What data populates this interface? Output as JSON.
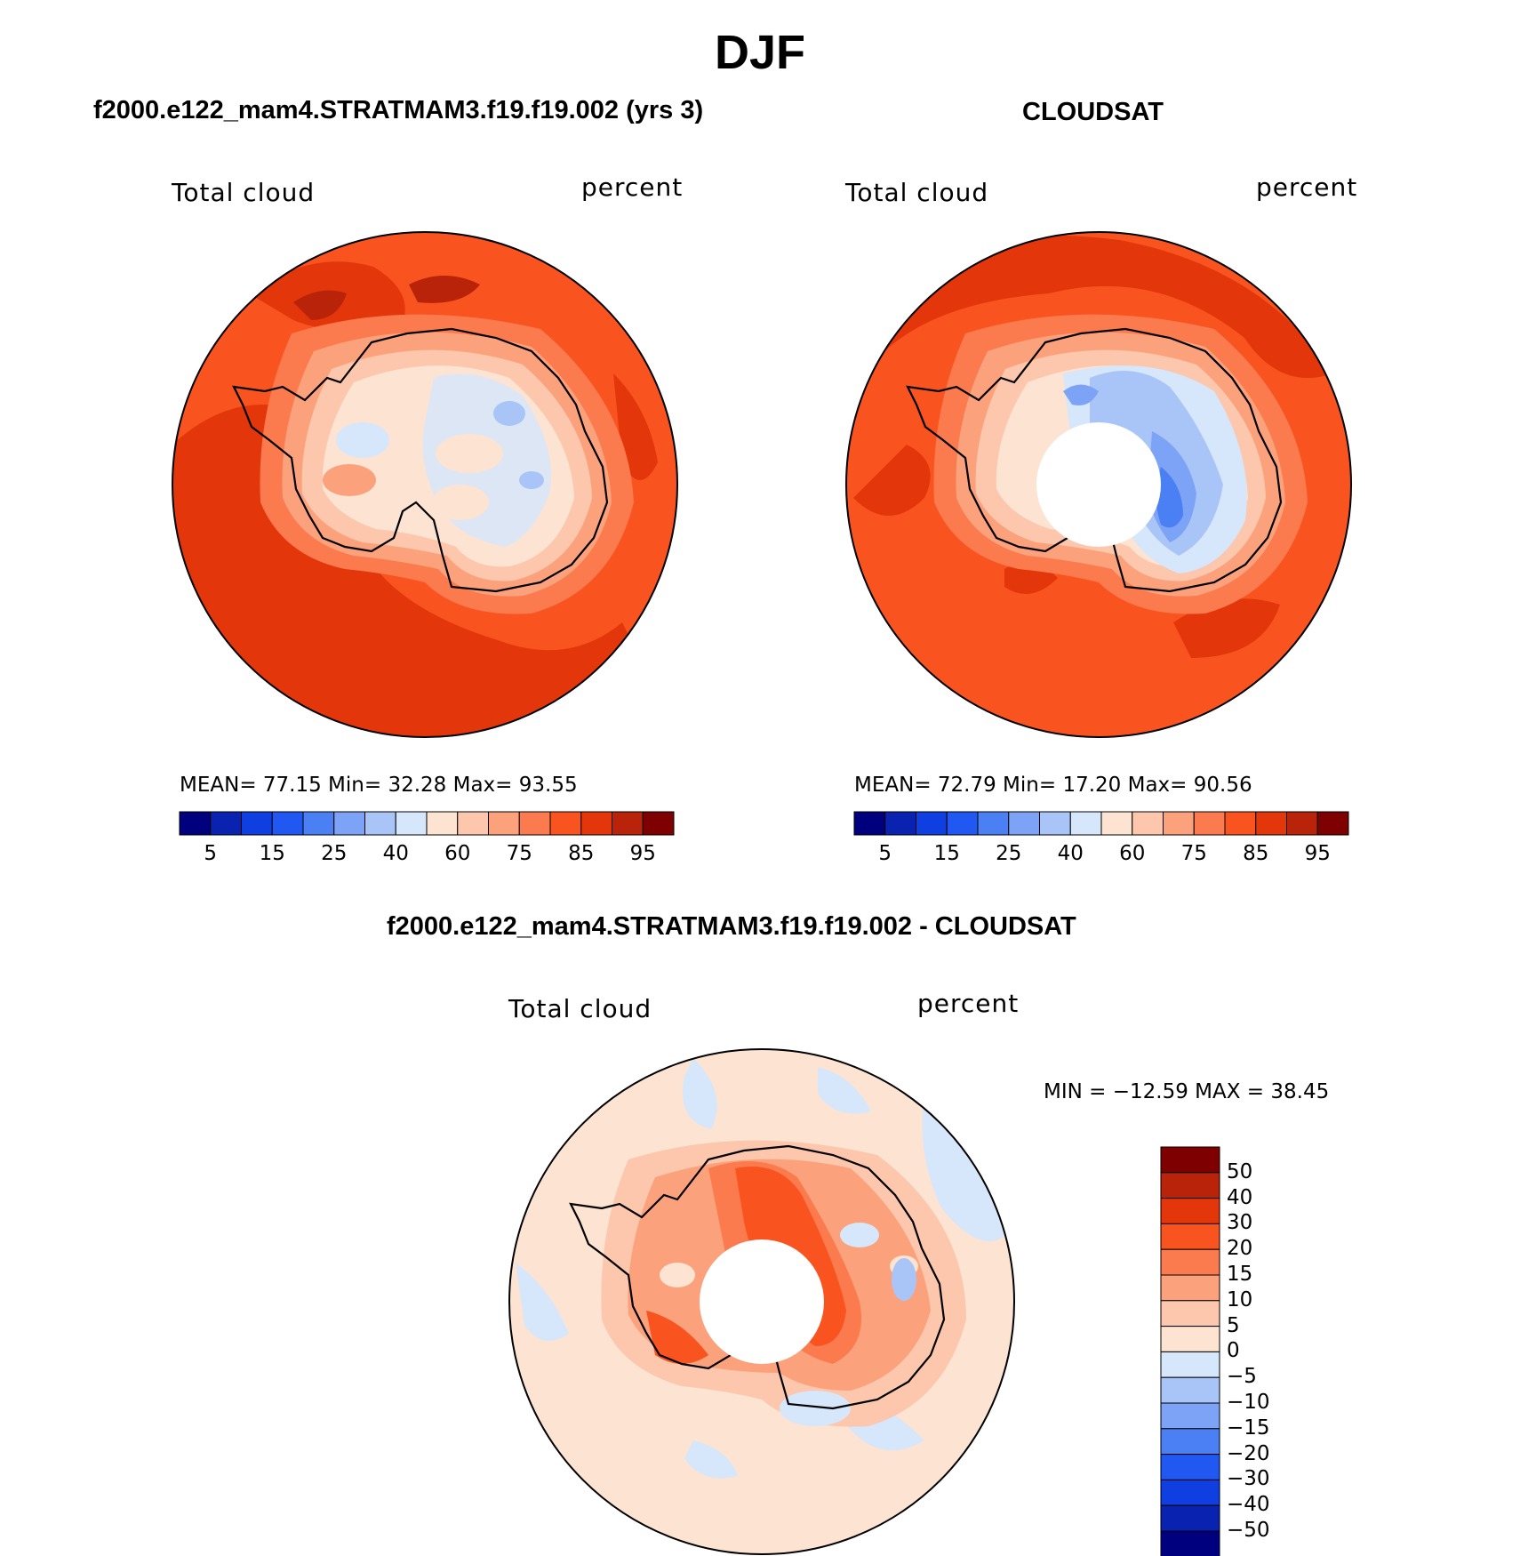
{
  "title": "DJF",
  "colors": {
    "absolute_scale": [
      "#00007f",
      "#0a22b0",
      "#0f3fe0",
      "#2258f2",
      "#4b7ff4",
      "#7da3f6",
      "#a9c5f8",
      "#d6e6fb",
      "#fde3d2",
      "#fcc7ac",
      "#fba27d",
      "#fb7b4e",
      "#f9531f",
      "#e3360a",
      "#b9230a",
      "#7f0000"
    ],
    "diff_scale": [
      "#00007f",
      "#0a22b0",
      "#0f3fe0",
      "#2258f2",
      "#4b7ff4",
      "#7da3f6",
      "#a9c5f8",
      "#d6e6fb",
      "#fde3d2",
      "#fcc7ac",
      "#fba27d",
      "#fb7b4e",
      "#f9531f",
      "#e3360a",
      "#b9230a",
      "#7f0000"
    ]
  },
  "chart_data": [
    {
      "type": "heatmap",
      "projection": "south-polar-stereographic",
      "panel_title": "f2000.e122_mam4.STRATMAM3.f19.f19.002 (yrs 3)",
      "left_label": "Total cloud",
      "right_label": "percent",
      "stats": {
        "mean": "77.15",
        "min": "32.28",
        "max": "93.55"
      },
      "stats_text": "MEAN=   77.15   Min=   32.28   Max=   93.55",
      "colorbar_labels": [
        "5",
        "15",
        "25",
        "40",
        "60",
        "75",
        "85",
        "95"
      ],
      "description": "Model total cloud fraction, mostly 80-90% over Southern Ocean, 40-60% over Antarctic interior"
    },
    {
      "type": "heatmap",
      "projection": "south-polar-stereographic",
      "panel_title": "CLOUDSAT",
      "left_label": "Total cloud",
      "right_label": "percent",
      "stats": {
        "mean": "72.79",
        "min": "17.20",
        "max": "90.56"
      },
      "stats_text": "MEAN=   72.79   Min=   17.20   Max=   90.56",
      "colorbar_labels": [
        "5",
        "15",
        "25",
        "40",
        "60",
        "75",
        "85",
        "95"
      ],
      "description": "CloudSat observed total cloud fraction, 80-90% over ocean, 15-40% over East Antarctica, missing data near pole"
    },
    {
      "type": "heatmap",
      "projection": "south-polar-stereographic",
      "panel_title": "f2000.e122_mam4.STRATMAM3.f19.f19.002 - CLOUDSAT",
      "left_label": "Total cloud",
      "right_label": "percent",
      "stats": {
        "min": "-12.59",
        "max": "38.45"
      },
      "stats_text": "MIN = −12.59  MAX =   38.45",
      "colorbar_labels": [
        "50",
        "40",
        "30",
        "20",
        "15",
        "10",
        "5",
        "0",
        "−5",
        "−10",
        "−15",
        "−20",
        "−30",
        "−40",
        "−50"
      ],
      "description": "Difference model minus CloudSat: +10 to +30% over Antarctica, -5 to +5% over ocean"
    }
  ]
}
